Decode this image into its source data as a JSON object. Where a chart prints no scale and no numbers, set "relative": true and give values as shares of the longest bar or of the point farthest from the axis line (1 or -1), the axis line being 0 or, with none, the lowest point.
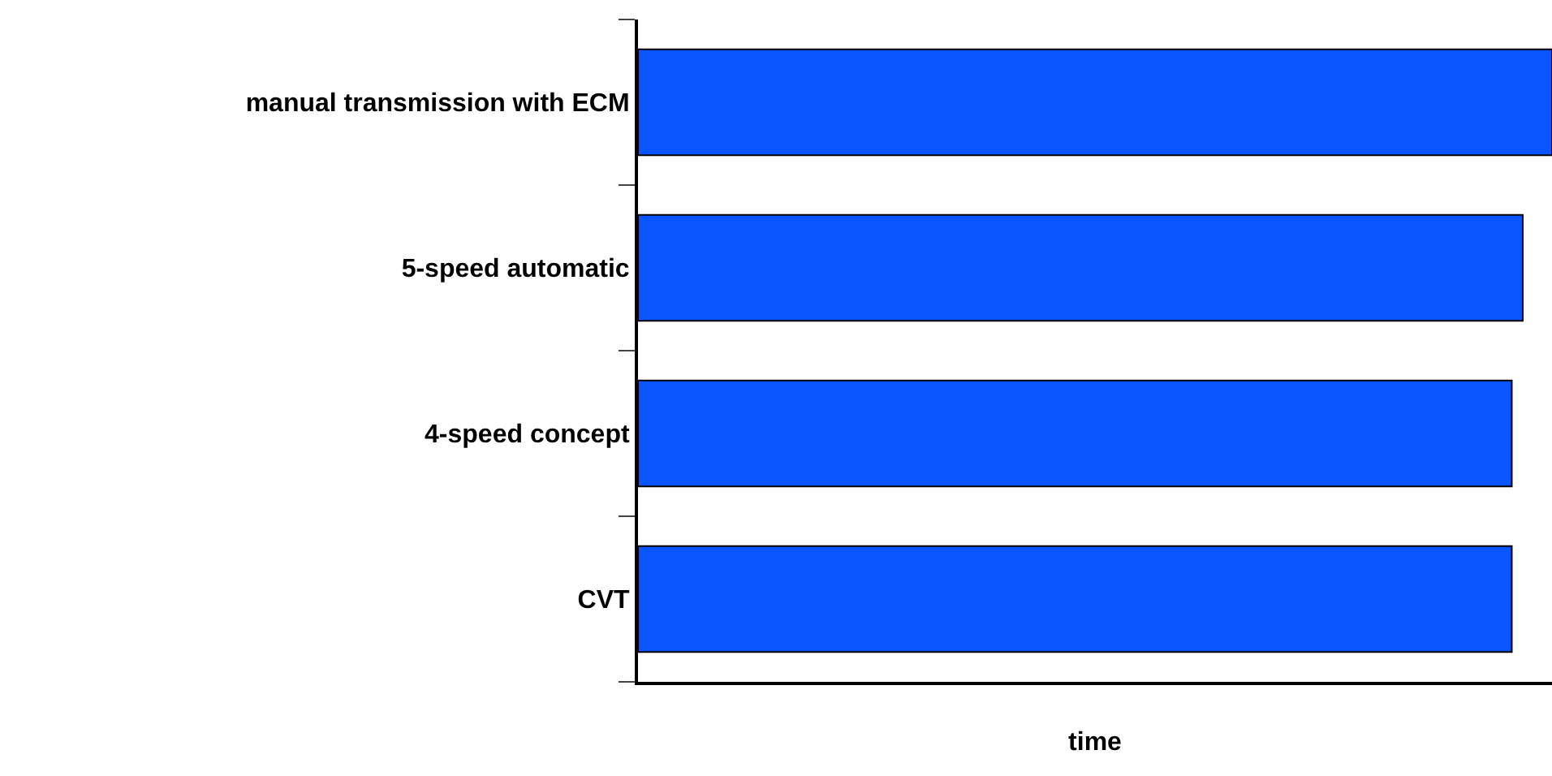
{
  "chart_data": {
    "type": "bar",
    "orientation": "horizontal",
    "relative": true,
    "xlabel": "time",
    "categories": [
      "manual transmission with ECM",
      "5-speed automatic",
      "4-speed concept",
      "CVT"
    ],
    "values": [
      1,
      0.968,
      0.956,
      0.956
    ],
    "color": "#0a55ff",
    "legend": false
  }
}
